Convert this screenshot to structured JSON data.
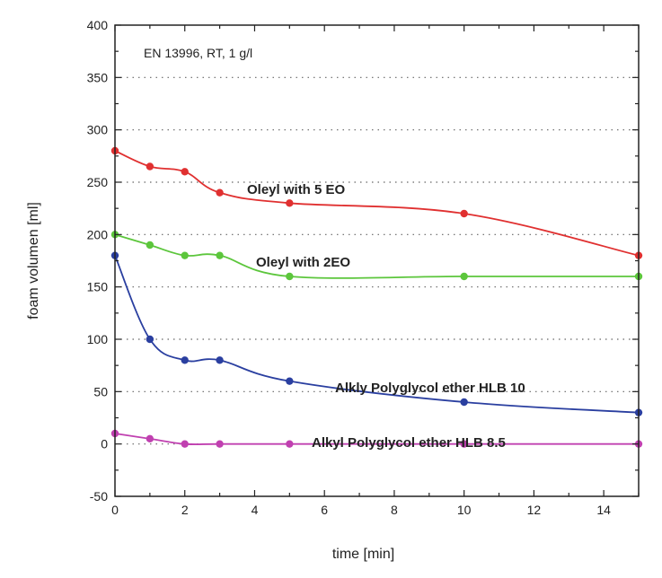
{
  "chart_data": {
    "type": "line",
    "title": "",
    "annotation": "EN 13996, RT, 1 g/l",
    "xlabel": "time [min]",
    "ylabel": "foam volumen [ml]",
    "xlim": [
      0,
      15
    ],
    "ylim": [
      -50,
      400
    ],
    "x_ticks": [
      0,
      2,
      4,
      6,
      8,
      10,
      12,
      14
    ],
    "y_ticks": [
      -50,
      0,
      50,
      100,
      150,
      200,
      250,
      300,
      350,
      400
    ],
    "grid": "horizontal dotted",
    "series": [
      {
        "name": "Oleyl with 5 EO",
        "color": "#e03030",
        "x": [
          0,
          1,
          2,
          3,
          5,
          10,
          15
        ],
        "y": [
          280,
          265,
          260,
          240,
          230,
          220,
          180
        ]
      },
      {
        "name": "Oleyl with 2EO",
        "color": "#5cc63c",
        "x": [
          0,
          1,
          2,
          3,
          5,
          10,
          15
        ],
        "y": [
          200,
          190,
          180,
          180,
          160,
          160,
          160
        ]
      },
      {
        "name": "Alkly Polyglycol ether HLB 10",
        "color": "#2a3fa0",
        "x": [
          0,
          1,
          2,
          3,
          5,
          10,
          15
        ],
        "y": [
          180,
          100,
          80,
          80,
          60,
          40,
          30
        ]
      },
      {
        "name": "Alkyl Polyglycol ether HLB 8.5",
        "color": "#c040b0",
        "x": [
          0,
          1,
          2,
          3,
          5,
          10,
          15
        ],
        "y": [
          10,
          5,
          0,
          0,
          0,
          0,
          0
        ]
      }
    ]
  }
}
